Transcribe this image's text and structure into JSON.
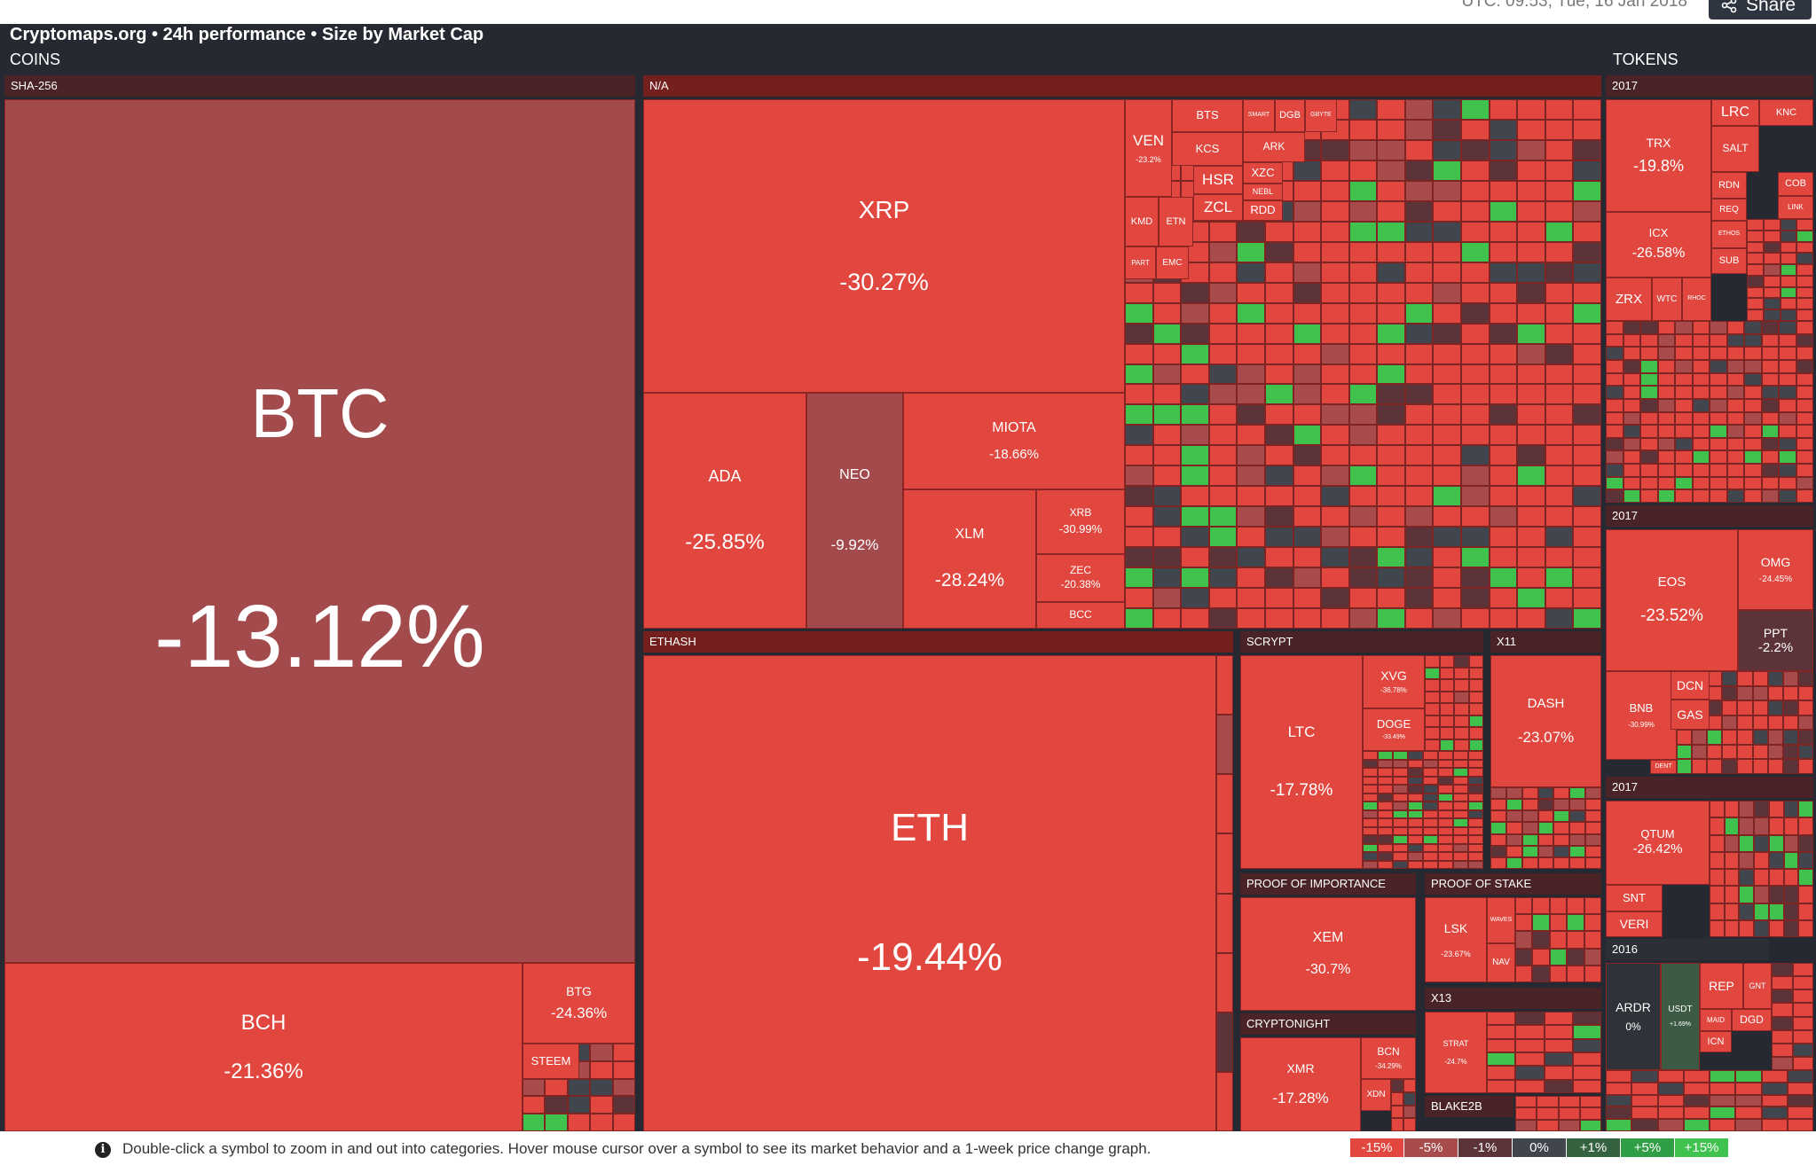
{
  "header": {
    "timestamp": "UTC: 09:53, Tue, 16 Jan 2018",
    "share_label": "Share"
  },
  "map_title": "Cryptomaps.org • 24h performance • Size by Market Cap",
  "sections": {
    "coins": "COINS",
    "tokens": "TOKENS"
  },
  "groups": {
    "sha256": "SHA-256",
    "na": "N/A",
    "ethash": "ETHASH",
    "scrypt": "SCRYPT",
    "x11": "X11",
    "proof_of_importance": "PROOF OF IMPORTANCE",
    "proof_of_stake": "PROOF OF STAKE",
    "x13": "X13",
    "cryptonight": "CRYPTONIGHT",
    "blake2b": "BLAKE2B",
    "tokens_2017_a": "2017",
    "tokens_2017_b": "2017",
    "tokens_2017_c": "2017",
    "tokens_2016": "2016"
  },
  "tiles": {
    "btc": {
      "symbol": "BTC",
      "change": "-13.12%"
    },
    "bch": {
      "symbol": "BCH",
      "change": "-21.36%"
    },
    "btg": {
      "symbol": "BTG",
      "change": "-24.36%"
    },
    "steem": {
      "symbol": "STEEM"
    },
    "xrp": {
      "symbol": "XRP",
      "change": "-30.27%"
    },
    "ada": {
      "symbol": "ADA",
      "change": "-25.85%"
    },
    "neo": {
      "symbol": "NEO",
      "change": "-9.92%"
    },
    "miota": {
      "symbol": "MIOTA",
      "change": "-18.66%"
    },
    "xlm": {
      "symbol": "XLM",
      "change": "-28.24%"
    },
    "xrb": {
      "symbol": "XRB",
      "change": "-30.99%"
    },
    "zec": {
      "symbol": "ZEC",
      "change": "-20.38%"
    },
    "bcc": {
      "symbol": "BCC"
    },
    "ven": {
      "symbol": "VEN",
      "change": "-23.2%"
    },
    "bts": {
      "symbol": "BTS"
    },
    "kcs": {
      "symbol": "KCS"
    },
    "smart": {
      "symbol": "SMART"
    },
    "dgb": {
      "symbol": "DGB"
    },
    "gbyte": {
      "symbol": "GBYTE"
    },
    "ark": {
      "symbol": "ARK"
    },
    "hsr": {
      "symbol": "HSR"
    },
    "zcl": {
      "symbol": "ZCL"
    },
    "xzc": {
      "symbol": "XZC"
    },
    "nebl": {
      "symbol": "NEBL"
    },
    "rdd": {
      "symbol": "RDD"
    },
    "kmd": {
      "symbol": "KMD"
    },
    "etn": {
      "symbol": "ETN"
    },
    "part": {
      "symbol": "PART"
    },
    "emc": {
      "symbol": "EMC"
    },
    "eth": {
      "symbol": "ETH",
      "change": "-19.44%"
    },
    "ltc": {
      "symbol": "LTC",
      "change": "-17.78%"
    },
    "xvg": {
      "symbol": "XVG",
      "change": "-36.78%"
    },
    "doge": {
      "symbol": "DOGE",
      "change": "-33.49%"
    },
    "dash": {
      "symbol": "DASH",
      "change": "-23.07%"
    },
    "xem": {
      "symbol": "XEM",
      "change": "-30.7%"
    },
    "lsk": {
      "symbol": "LSK",
      "change": "-23.67%"
    },
    "waves": {
      "symbol": "WAVES"
    },
    "nav": {
      "symbol": "NAV"
    },
    "strat": {
      "symbol": "STRAT",
      "change": "-24.7%"
    },
    "xmr": {
      "symbol": "XMR",
      "change": "-17.28%"
    },
    "bcn": {
      "symbol": "BCN",
      "change": "-34.29%"
    },
    "xdn": {
      "symbol": "XDN"
    },
    "trx": {
      "symbol": "TRX",
      "change": "-19.8%"
    },
    "lrc": {
      "symbol": "LRC"
    },
    "knc": {
      "symbol": "KNC"
    },
    "salt": {
      "symbol": "SALT"
    },
    "rdn": {
      "symbol": "RDN"
    },
    "cob": {
      "symbol": "COB"
    },
    "req": {
      "symbol": "REQ"
    },
    "link": {
      "symbol": "LINK"
    },
    "icx": {
      "symbol": "ICX",
      "change": "-26.58%"
    },
    "ethos": {
      "symbol": "ETHOS"
    },
    "sub": {
      "symbol": "SUB"
    },
    "zrx": {
      "symbol": "ZRX"
    },
    "wtc": {
      "symbol": "WTC"
    },
    "rhoc": {
      "symbol": "RHOC"
    },
    "eos": {
      "symbol": "EOS",
      "change": "-23.52%"
    },
    "omg": {
      "symbol": "OMG",
      "change": "-24.45%"
    },
    "ppt": {
      "symbol": "PPT",
      "change": "-2.2%"
    },
    "bnb": {
      "symbol": "BNB",
      "change": "-30.99%"
    },
    "dcn": {
      "symbol": "DCN"
    },
    "gas": {
      "symbol": "GAS"
    },
    "dent": {
      "symbol": "DENT"
    },
    "qtum": {
      "symbol": "QTUM",
      "change": "-26.42%"
    },
    "snt": {
      "symbol": "SNT"
    },
    "veri": {
      "symbol": "VERI"
    },
    "ardr": {
      "symbol": "ARDR",
      "change": "0%"
    },
    "usdt": {
      "symbol": "USDT",
      "change": "+1.69%"
    },
    "rep": {
      "symbol": "REP"
    },
    "gnt": {
      "symbol": "GNT"
    },
    "maid": {
      "symbol": "MAID"
    },
    "dgd": {
      "symbol": "DGD"
    },
    "icn": {
      "symbol": "ICN"
    }
  },
  "footer": {
    "info_text": "Double-click a symbol to zoom in and out into categories. Hover mouse cursor over a symbol to see its market behavior and a 1-week price change graph."
  },
  "legend": [
    {
      "label": "-15%",
      "color": "#e1473f"
    },
    {
      "label": "-5%",
      "color": "#a84b4d"
    },
    {
      "label": "-1%",
      "color": "#5c3338"
    },
    {
      "label": "0%",
      "color": "#41454e"
    },
    {
      "label": "+1%",
      "color": "#35623f"
    },
    {
      "label": "+5%",
      "color": "#2f9e44"
    },
    {
      "label": "+15%",
      "color": "#40c24e"
    }
  ],
  "colors": {
    "red": "#e1473f",
    "mid": "#a84b4d",
    "dark": "#5c3338",
    "neutral": "#41454e",
    "green": "#40c24e"
  }
}
